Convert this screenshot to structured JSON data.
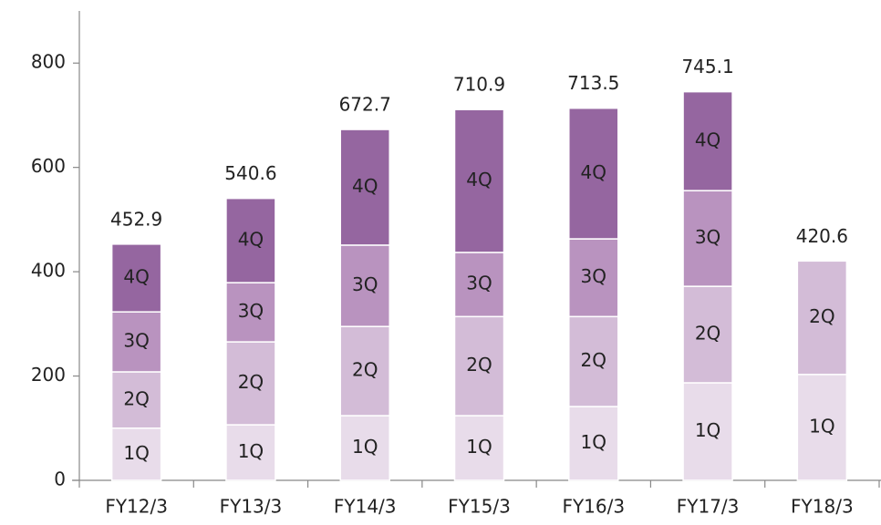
{
  "chart_data": {
    "type": "stacked_bar",
    "categories": [
      "FY12/3",
      "FY13/3",
      "FY14/3",
      "FY15/3",
      "FY16/3",
      "FY17/3",
      "FY18/3"
    ],
    "series": [
      {
        "name": "1Q",
        "color": "#e8dcea",
        "values": [
          100,
          106.5,
          124,
          124,
          141.5,
          187,
          203
        ]
      },
      {
        "name": "2Q",
        "color": "#d3bcd7",
        "values": [
          108,
          159,
          171,
          190,
          172.5,
          185,
          217.6
        ]
      },
      {
        "name": "3Q",
        "color": "#b993bf",
        "values": [
          115,
          113.5,
          156,
          123,
          149,
          183.5,
          null
        ]
      },
      {
        "name": "4Q",
        "color": "#9566a0",
        "values": [
          129.9,
          161.6,
          221.7,
          273.9,
          250.5,
          189.6,
          null
        ]
      }
    ],
    "totals": [
      452.9,
      540.6,
      672.7,
      710.9,
      713.5,
      745.1,
      420.6
    ],
    "ylim": [
      0,
      900
    ],
    "yticks": [
      0,
      200,
      400,
      600,
      800
    ]
  }
}
